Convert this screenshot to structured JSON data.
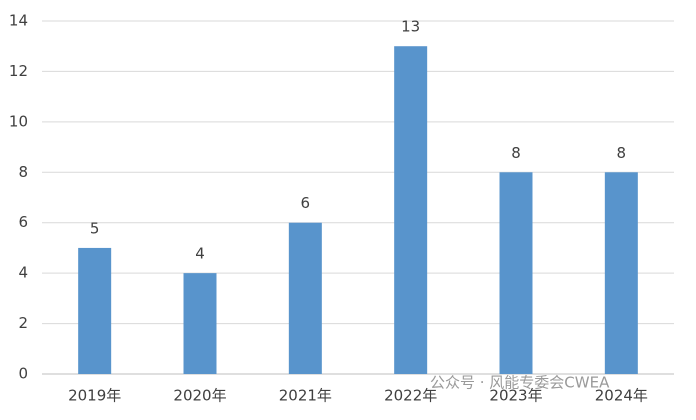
{
  "chart_data": {
    "type": "bar",
    "categories": [
      "2019年",
      "2020年",
      "2021年",
      "2022年",
      "2023年",
      "2024年"
    ],
    "values": [
      5,
      4,
      6,
      13,
      8,
      8
    ],
    "color": "#5894cc",
    "ylim": [
      0,
      14
    ],
    "yticks": [
      0,
      2,
      4,
      6,
      8,
      10,
      12,
      14
    ],
    "grid": true,
    "annotation": "公众号 · 风能专委会CWEA"
  }
}
